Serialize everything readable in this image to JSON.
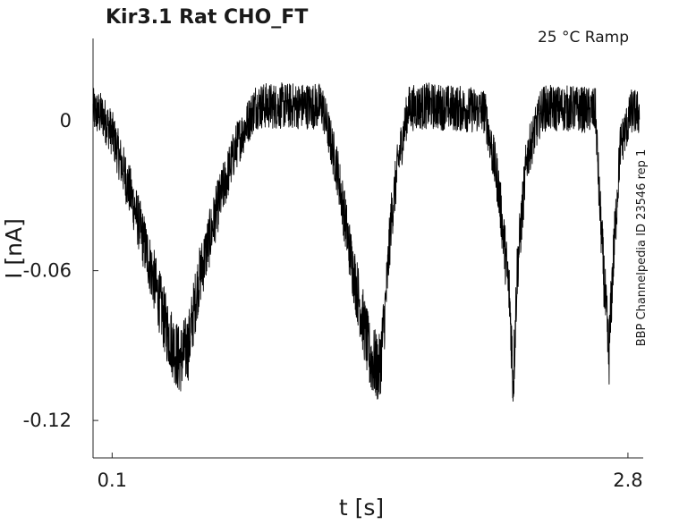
{
  "chart_data": {
    "type": "line",
    "title": "Kir3.1  Rat  CHO_FT",
    "annotation": "25 °C  Ramp",
    "side_label": "BBP Channelpedia ID 23546 rep 1",
    "xlabel": "t [s]",
    "ylabel": "I [nA]",
    "xlim": [
      0.0,
      2.88
    ],
    "ylim": [
      -0.135,
      0.033
    ],
    "x_ticks": [
      0.1,
      2.8
    ],
    "x_tick_labels": [
      "0.1",
      "2.8"
    ],
    "y_ticks": [
      0,
      -0.06,
      -0.12
    ],
    "y_tick_labels": [
      "0",
      "-0.06",
      "-0.12"
    ],
    "grid": false,
    "legend": "none",
    "series": [
      {
        "x": [
          0.0,
          0.05,
          0.1,
          0.2,
          0.3,
          0.38,
          0.45,
          0.5,
          0.55,
          0.65,
          0.75,
          0.85,
          0.9,
          1.05,
          1.2,
          1.28,
          1.35,
          1.45,
          1.5,
          1.53,
          1.56,
          1.6,
          1.65,
          1.75,
          1.9,
          2.05,
          2.12,
          2.18,
          2.2,
          2.22,
          2.27,
          2.35,
          2.5,
          2.63,
          2.65,
          2.68,
          2.7,
          2.72,
          2.76,
          2.82,
          2.86
        ],
        "values": [
          0.004,
          0.002,
          -0.005,
          -0.03,
          -0.058,
          -0.082,
          -0.096,
          -0.09,
          -0.065,
          -0.035,
          -0.01,
          0.006,
          0.006,
          0.006,
          0.006,
          -0.02,
          -0.055,
          -0.095,
          -0.1,
          -0.075,
          -0.04,
          -0.015,
          0.005,
          0.006,
          0.005,
          0.004,
          -0.025,
          -0.07,
          -0.105,
          -0.06,
          -0.015,
          0.005,
          0.005,
          0.004,
          -0.03,
          -0.07,
          -0.095,
          -0.06,
          -0.01,
          0.004,
          0.003
        ],
        "noise_amplitude": 0.009
      }
    ]
  }
}
